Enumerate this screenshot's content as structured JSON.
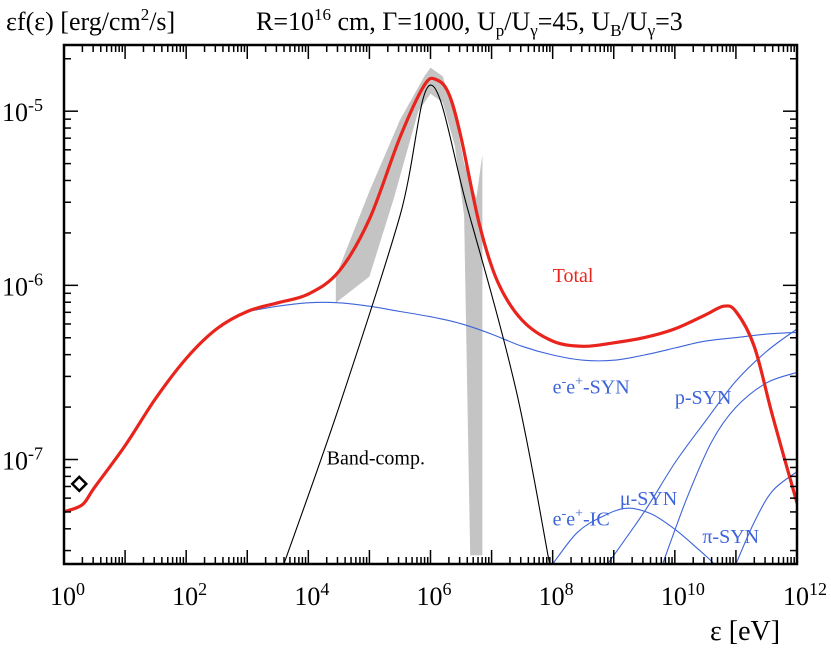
{
  "chart_data": {
    "type": "line",
    "ylabel": "εf(ε) [erg/cm2/s]",
    "ylabel_parts": {
      "pre": "εf(ε) [erg/cm",
      "sup": "2",
      "post": "/s]"
    },
    "xlabel": "ε [eV]",
    "title": "R=10^16 cm, Γ=1000, Up/Uγ=45, UB/Uγ=3",
    "title_parts": {
      "r": "R=10",
      "r_exp": "16",
      "r_unit": " cm, Γ=1000, U",
      "p_sub": "p",
      "slash1": "/U",
      "g_sub1": "γ",
      "p_val": "=45, U",
      "b_sub": "B",
      "slash2": "/U",
      "g_sub2": "γ",
      "b_val": "=3"
    },
    "xscale": "log",
    "yscale": "log",
    "xlim_log10": [
      0,
      12
    ],
    "ylim_log10": [
      -7.6,
      -4.62
    ],
    "x_ticks": [
      {
        "base": "10",
        "exp": "0",
        "log": 0
      },
      {
        "base": "10",
        "exp": "2",
        "log": 2
      },
      {
        "base": "10",
        "exp": "4",
        "log": 4
      },
      {
        "base": "10",
        "exp": "6",
        "log": 6
      },
      {
        "base": "10",
        "exp": "8",
        "log": 8
      },
      {
        "base": "10",
        "exp": "10",
        "log": 10
      },
      {
        "base": "10",
        "exp": "12",
        "log": 12
      }
    ],
    "y_ticks": [
      {
        "base": "10",
        "exp": "-5",
        "log": -5
      },
      {
        "base": "10",
        "exp": "-6",
        "log": -6
      },
      {
        "base": "10",
        "exp": "-7",
        "log": -7
      }
    ],
    "series": [
      {
        "name": "Total",
        "color": "#e8241c",
        "style": "thick",
        "points": [
          [
            0,
            -7.3
          ],
          [
            0.3,
            -7.26
          ],
          [
            0.5,
            -7.16
          ],
          [
            1,
            -6.92
          ],
          [
            1.5,
            -6.65
          ],
          [
            2,
            -6.42
          ],
          [
            2.5,
            -6.25
          ],
          [
            3,
            -6.15
          ],
          [
            3.5,
            -6.1
          ],
          [
            4,
            -6.05
          ],
          [
            4.5,
            -5.92
          ],
          [
            5,
            -5.62
          ],
          [
            5.5,
            -5.15
          ],
          [
            5.9,
            -4.85
          ],
          [
            6.1,
            -4.82
          ],
          [
            6.3,
            -4.9
          ],
          [
            6.5,
            -5.15
          ],
          [
            6.8,
            -5.65
          ],
          [
            7.1,
            -5.98
          ],
          [
            7.5,
            -6.2
          ],
          [
            8,
            -6.32
          ],
          [
            8.5,
            -6.35
          ],
          [
            9,
            -6.33
          ],
          [
            9.5,
            -6.3
          ],
          [
            10,
            -6.25
          ],
          [
            10.5,
            -6.17
          ],
          [
            10.8,
            -6.12
          ],
          [
            11.0,
            -6.15
          ],
          [
            11.3,
            -6.35
          ],
          [
            11.6,
            -6.75
          ],
          [
            12,
            -7.25
          ]
        ]
      },
      {
        "name": "e-e+-SYN",
        "color": "#3d64d9",
        "style": "thin",
        "points": [
          [
            3,
            -6.15
          ],
          [
            3.5,
            -6.12
          ],
          [
            4,
            -6.1
          ],
          [
            4.5,
            -6.1
          ],
          [
            5,
            -6.12
          ],
          [
            5.5,
            -6.15
          ],
          [
            6,
            -6.18
          ],
          [
            6.5,
            -6.22
          ],
          [
            7,
            -6.28
          ],
          [
            7.5,
            -6.35
          ],
          [
            8,
            -6.4
          ],
          [
            8.5,
            -6.43
          ],
          [
            9,
            -6.43
          ],
          [
            9.5,
            -6.4
          ],
          [
            10,
            -6.36
          ],
          [
            10.5,
            -6.32
          ],
          [
            11,
            -6.3
          ],
          [
            11.5,
            -6.28
          ],
          [
            12,
            -6.27
          ]
        ]
      },
      {
        "name": "Band-comp.",
        "color": "#000000",
        "style": "thin",
        "points": [
          [
            3.6,
            -7.6
          ],
          [
            4.5,
            -6.7
          ],
          [
            5.5,
            -5.6
          ],
          [
            6.0,
            -4.85
          ],
          [
            6.6,
            -5.55
          ],
          [
            7.4,
            -6.6
          ],
          [
            7.95,
            -7.6
          ]
        ]
      },
      {
        "name": "e-e+-IC",
        "color": "#3d64d9",
        "style": "thin",
        "points": [
          [
            8,
            -7.6
          ],
          [
            8.4,
            -7.42
          ],
          [
            8.8,
            -7.33
          ],
          [
            9.2,
            -7.28
          ],
          [
            9.6,
            -7.31
          ],
          [
            10,
            -7.4
          ],
          [
            10.4,
            -7.52
          ],
          [
            10.65,
            -7.6
          ]
        ]
      },
      {
        "name": "μ-SYN",
        "color": "#3d64d9",
        "style": "thin",
        "points": [
          [
            8.9,
            -7.6
          ],
          [
            9.5,
            -7.3
          ],
          [
            10,
            -7.02
          ],
          [
            10.5,
            -6.78
          ],
          [
            11,
            -6.55
          ],
          [
            11.5,
            -6.38
          ],
          [
            12,
            -6.25
          ]
        ]
      },
      {
        "name": "p-SYN",
        "color": "#3d64d9",
        "style": "thin",
        "points": [
          [
            9.8,
            -7.6
          ],
          [
            10.2,
            -7.22
          ],
          [
            10.6,
            -6.9
          ],
          [
            11,
            -6.7
          ],
          [
            11.5,
            -6.56
          ],
          [
            12,
            -6.5
          ]
        ]
      },
      {
        "name": "π-SYN",
        "color": "#3d64d9",
        "style": "thin",
        "points": [
          [
            11.0,
            -7.6
          ],
          [
            11.3,
            -7.36
          ],
          [
            11.6,
            -7.18
          ],
          [
            12,
            -7.07
          ]
        ]
      }
    ],
    "observed_band": {
      "name": "observed",
      "color": "#c4c4c4",
      "upper": [
        [
          4.45,
          -5.95
        ],
        [
          5,
          -5.46
        ],
        [
          5.5,
          -5.05
        ],
        [
          5.9,
          -4.8
        ],
        [
          6.0,
          -4.75
        ],
        [
          6.2,
          -4.8
        ],
        [
          6.4,
          -5.02
        ],
        [
          6.55,
          -5.3
        ],
        [
          6.75,
          -5.5
        ],
        [
          6.85,
          -5.25
        ]
      ],
      "lower": [
        [
          6.85,
          -7.55
        ],
        [
          6.65,
          -7.55
        ],
        [
          6.55,
          -5.6
        ],
        [
          6.4,
          -5.2
        ],
        [
          6.2,
          -4.95
        ],
        [
          6.0,
          -4.9
        ],
        [
          5.8,
          -5.0
        ],
        [
          5.4,
          -5.5
        ],
        [
          5,
          -5.95
        ],
        [
          4.45,
          -6.1
        ]
      ]
    },
    "data_point": {
      "x_log": 0.25,
      "y_log": -7.14,
      "marker": "diamond"
    },
    "labels": [
      {
        "text": "Total",
        "color": "#e8241c",
        "at": [
          8.0,
          -5.98
        ]
      },
      {
        "text": "Band-comp.",
        "color": "#000000",
        "at": [
          4.3,
          -7.03
        ]
      },
      {
        "text": "p-SYN",
        "color": "#3d64d9",
        "at": [
          10.0,
          -6.68
        ]
      },
      {
        "text": "μ-SYN",
        "color": "#3d64d9",
        "at": [
          9.1,
          -7.26
        ]
      },
      {
        "text": "π-SYN",
        "color": "#3d64d9",
        "at": [
          10.45,
          -7.48
        ]
      }
    ],
    "labels_pm": [
      {
        "pre": "e",
        "s1": "-",
        "mid": "e",
        "s2": "+",
        "post": "-SYN",
        "color": "#3d64d9",
        "at": [
          8.0,
          -6.62
        ]
      },
      {
        "pre": "e",
        "s1": "-",
        "mid": "e",
        "s2": "+",
        "post": "-IC",
        "color": "#3d64d9",
        "at": [
          8.0,
          -7.38
        ]
      }
    ]
  }
}
